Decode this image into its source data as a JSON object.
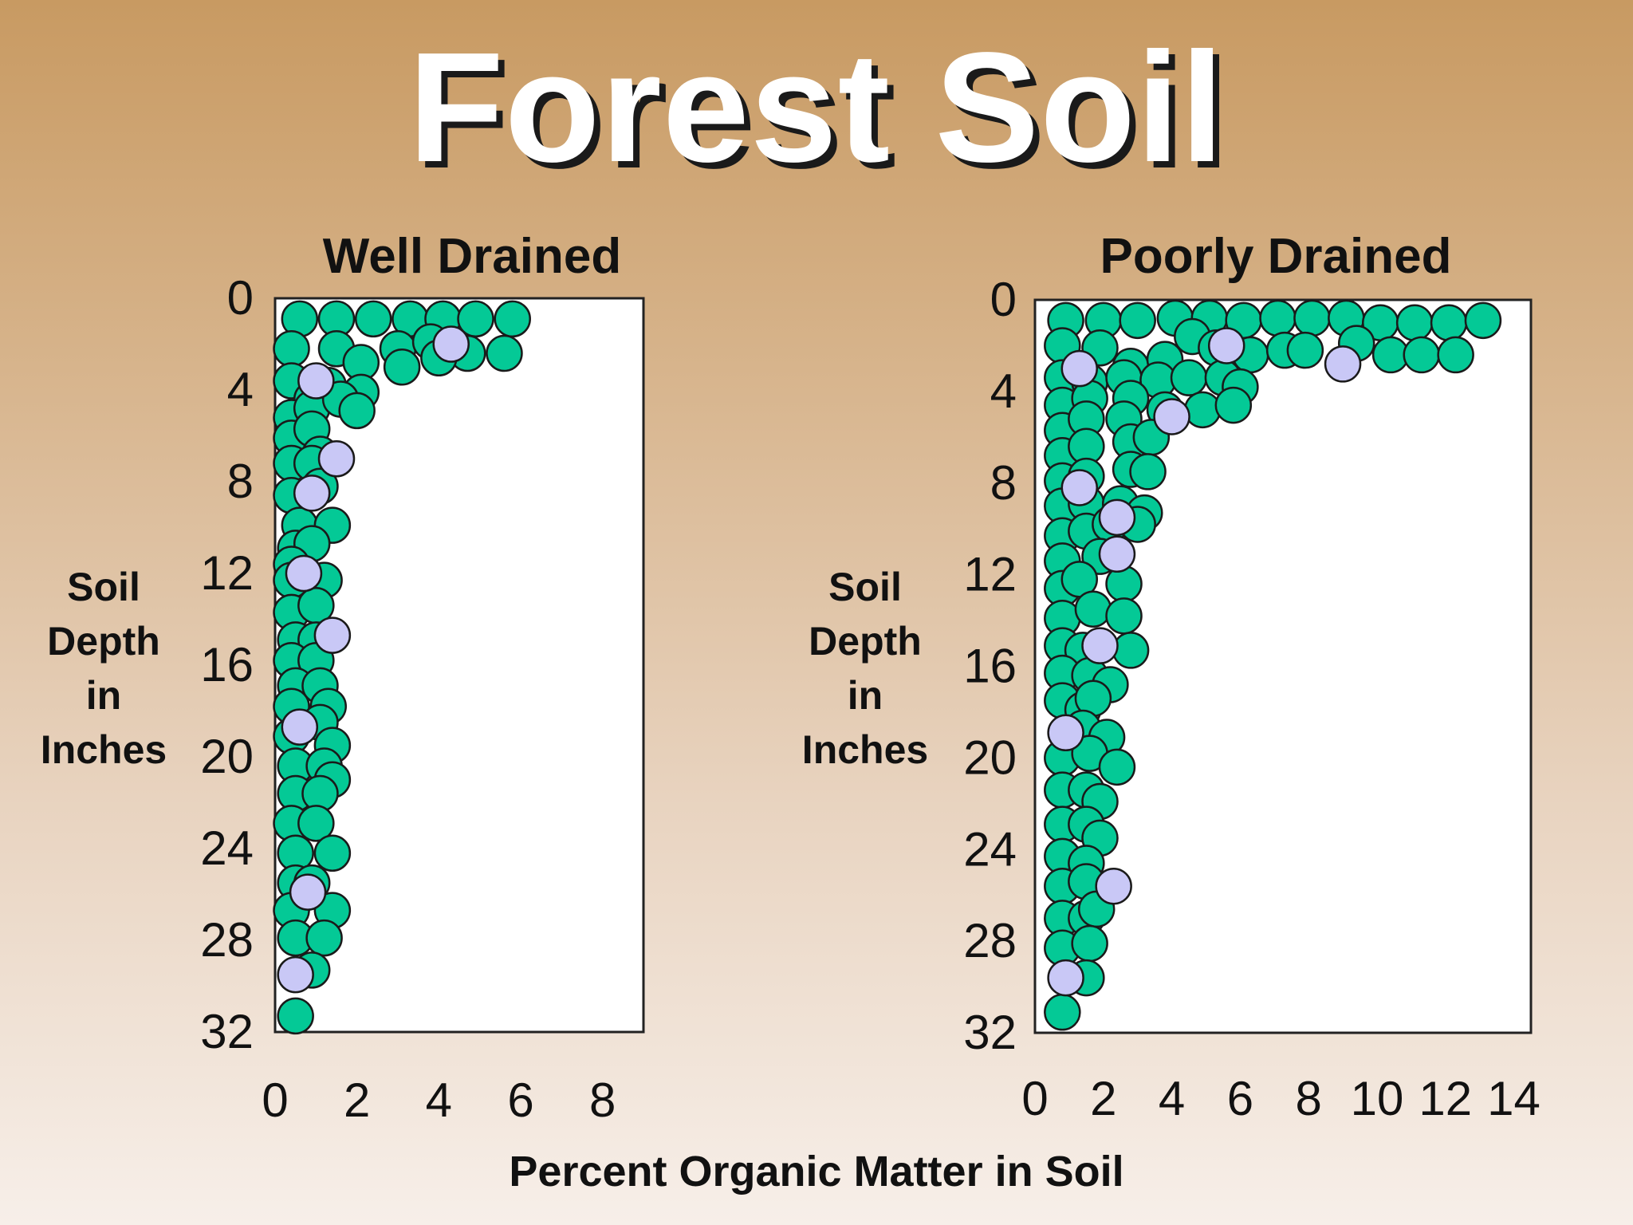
{
  "title": "Forest Soil",
  "x_axis_label": "Percent Organic Matter in Soil",
  "colors": {
    "organic": "#04c996",
    "mineral": "#c9c8f6",
    "outline": "#1a1a1a"
  },
  "chart_data": [
    {
      "type": "scatter",
      "title": "Well Drained",
      "ylabel": "Soil Depth in Inches",
      "ylabel_lines": [
        "Soil",
        "Depth",
        "in",
        "Inches"
      ],
      "xlim": [
        0,
        9
      ],
      "ylim": [
        0,
        32
      ],
      "xticks": [
        "0",
        "2",
        "4",
        "6",
        "8"
      ],
      "yticks": [
        "0",
        "4",
        "8",
        "12",
        "16",
        "20",
        "24",
        "28",
        "32"
      ],
      "y_inverted": true,
      "grid": false,
      "series": [
        {
          "color": "#04c996",
          "points": [
            [
              0.6,
              0.9
            ],
            [
              1.5,
              0.9
            ],
            [
              2.4,
              0.9
            ],
            [
              3.3,
              0.9
            ],
            [
              4.1,
              0.9
            ],
            [
              4.9,
              0.9
            ],
            [
              5.8,
              0.9
            ],
            [
              0.4,
              2.2
            ],
            [
              1.5,
              2.2
            ],
            [
              3.0,
              2.2
            ],
            [
              3.8,
              1.9
            ],
            [
              4.7,
              2.4
            ],
            [
              5.6,
              2.4
            ],
            [
              2.1,
              2.8
            ],
            [
              3.1,
              3.0
            ],
            [
              4.0,
              2.6
            ],
            [
              0.4,
              3.6
            ],
            [
              0.9,
              4.4
            ],
            [
              1.3,
              3.8
            ],
            [
              2.1,
              4.1
            ],
            [
              0.4,
              5.2
            ],
            [
              0.9,
              4.8
            ],
            [
              1.6,
              4.4
            ],
            [
              2.0,
              4.9
            ],
            [
              0.4,
              6.1
            ],
            [
              0.9,
              5.7
            ],
            [
              1.1,
              6.8
            ],
            [
              0.4,
              7.2
            ],
            [
              0.9,
              7.2
            ],
            [
              0.4,
              8.6
            ],
            [
              1.1,
              8.2
            ],
            [
              0.6,
              9.9
            ],
            [
              1.4,
              9.9
            ],
            [
              0.5,
              10.9
            ],
            [
              0.9,
              10.7
            ],
            [
              0.4,
              11.6
            ],
            [
              0.4,
              12.3
            ],
            [
              1.2,
              12.3
            ],
            [
              0.4,
              13.7
            ],
            [
              1.0,
              13.4
            ],
            [
              0.5,
              14.9
            ],
            [
              1.0,
              14.9
            ],
            [
              0.4,
              15.8
            ],
            [
              1.0,
              15.8
            ],
            [
              0.5,
              16.9
            ],
            [
              1.1,
              16.9
            ],
            [
              0.4,
              17.8
            ],
            [
              1.3,
              17.8
            ],
            [
              1.1,
              18.5
            ],
            [
              0.4,
              19.1
            ],
            [
              1.4,
              19.5
            ],
            [
              0.5,
              20.4
            ],
            [
              1.2,
              20.4
            ],
            [
              1.4,
              21.0
            ],
            [
              0.5,
              21.6
            ],
            [
              1.1,
              21.6
            ],
            [
              0.4,
              22.9
            ],
            [
              1.0,
              22.9
            ],
            [
              0.5,
              24.2
            ],
            [
              1.4,
              24.2
            ],
            [
              0.5,
              25.5
            ],
            [
              0.9,
              25.5
            ],
            [
              0.4,
              26.7
            ],
            [
              1.4,
              26.7
            ],
            [
              0.5,
              27.9
            ],
            [
              1.2,
              27.9
            ],
            [
              0.9,
              29.3
            ],
            [
              0.5,
              31.3
            ]
          ]
        },
        {
          "color": "#c9c8f6",
          "points": [
            [
              4.3,
              2.0
            ],
            [
              1.0,
              3.6
            ],
            [
              1.5,
              7.0
            ],
            [
              0.9,
              8.5
            ],
            [
              0.7,
              12.0
            ],
            [
              1.4,
              14.7
            ],
            [
              0.6,
              18.7
            ],
            [
              0.8,
              25.9
            ],
            [
              0.5,
              29.5
            ]
          ]
        }
      ]
    },
    {
      "type": "scatter",
      "title": "Poorly Drained",
      "ylabel": "Soil Depth in Inches",
      "ylabel_lines": [
        "Soil",
        "Depth",
        "in",
        "Inches"
      ],
      "xlim": [
        0,
        14.5
      ],
      "ylim": [
        0,
        32
      ],
      "xticks": [
        "0",
        "2",
        "4",
        "6",
        "8",
        "10",
        "12",
        "14"
      ],
      "yticks": [
        "0",
        "4",
        "8",
        "12",
        "16",
        "20",
        "24",
        "28",
        "32"
      ],
      "y_inverted": true,
      "grid": false,
      "series": [
        {
          "color": "#04c996",
          "points": [
            [
              0.9,
              0.9
            ],
            [
              2.0,
              0.9
            ],
            [
              3.0,
              0.9
            ],
            [
              4.1,
              0.8
            ],
            [
              5.1,
              0.8
            ],
            [
              6.1,
              0.9
            ],
            [
              7.1,
              0.8
            ],
            [
              8.1,
              0.8
            ],
            [
              9.1,
              0.8
            ],
            [
              10.1,
              1.0
            ],
            [
              11.1,
              1.0
            ],
            [
              12.1,
              1.0
            ],
            [
              13.1,
              0.9
            ],
            [
              0.8,
              2.0
            ],
            [
              1.9,
              2.1
            ],
            [
              2.8,
              2.9
            ],
            [
              3.8,
              2.6
            ],
            [
              4.6,
              1.6
            ],
            [
              5.3,
              2.1
            ],
            [
              6.3,
              2.4
            ],
            [
              7.3,
              2.2
            ],
            [
              7.9,
              2.2
            ],
            [
              9.4,
              1.9
            ],
            [
              10.4,
              2.4
            ],
            [
              11.3,
              2.4
            ],
            [
              12.3,
              2.4
            ],
            [
              0.8,
              3.4
            ],
            [
              1.6,
              3.6
            ],
            [
              2.6,
              3.4
            ],
            [
              3.6,
              3.5
            ],
            [
              4.5,
              3.4
            ],
            [
              5.5,
              3.4
            ],
            [
              6.0,
              3.8
            ],
            [
              0.8,
              4.6
            ],
            [
              1.6,
              4.3
            ],
            [
              2.8,
              4.3
            ],
            [
              3.8,
              4.8
            ],
            [
              4.9,
              4.8
            ],
            [
              5.8,
              4.6
            ],
            [
              0.8,
              5.7
            ],
            [
              1.5,
              5.2
            ],
            [
              2.6,
              5.2
            ],
            [
              0.8,
              6.8
            ],
            [
              1.5,
              6.4
            ],
            [
              2.8,
              6.2
            ],
            [
              3.4,
              6.0
            ],
            [
              0.8,
              7.9
            ],
            [
              1.5,
              7.7
            ],
            [
              2.8,
              7.4
            ],
            [
              3.3,
              7.5
            ],
            [
              0.8,
              9.0
            ],
            [
              1.5,
              8.9
            ],
            [
              2.5,
              8.9
            ],
            [
              3.2,
              9.3
            ],
            [
              0.8,
              10.3
            ],
            [
              1.5,
              10.1
            ],
            [
              2.2,
              9.8
            ],
            [
              3.0,
              9.8
            ],
            [
              0.8,
              11.4
            ],
            [
              1.9,
              11.2
            ],
            [
              0.8,
              12.6
            ],
            [
              1.3,
              12.2
            ],
            [
              2.6,
              12.4
            ],
            [
              0.8,
              13.9
            ],
            [
              1.7,
              13.5
            ],
            [
              2.6,
              13.8
            ],
            [
              0.8,
              15.1
            ],
            [
              1.4,
              15.3
            ],
            [
              2.8,
              15.3
            ],
            [
              0.8,
              16.3
            ],
            [
              1.6,
              16.4
            ],
            [
              2.2,
              16.8
            ],
            [
              0.8,
              17.5
            ],
            [
              1.4,
              17.9
            ],
            [
              1.7,
              17.4
            ],
            [
              1.4,
              18.7
            ],
            [
              2.1,
              19.1
            ],
            [
              0.8,
              20.0
            ],
            [
              1.6,
              19.8
            ],
            [
              2.4,
              20.4
            ],
            [
              0.8,
              21.4
            ],
            [
              1.5,
              21.4
            ],
            [
              1.9,
              21.9
            ],
            [
              0.8,
              22.9
            ],
            [
              1.5,
              22.9
            ],
            [
              1.9,
              23.5
            ],
            [
              0.8,
              24.3
            ],
            [
              1.5,
              24.6
            ],
            [
              0.8,
              25.6
            ],
            [
              1.5,
              25.4
            ],
            [
              0.8,
              27.0
            ],
            [
              1.5,
              27.0
            ],
            [
              1.8,
              26.6
            ],
            [
              0.8,
              28.3
            ],
            [
              1.6,
              28.1
            ],
            [
              1.5,
              29.6
            ],
            [
              0.8,
              31.1
            ]
          ]
        },
        {
          "color": "#c9c8f6",
          "points": [
            [
              5.6,
              2.0
            ],
            [
              1.3,
              3.0
            ],
            [
              9.0,
              2.8
            ],
            [
              4.0,
              5.1
            ],
            [
              1.3,
              8.2
            ],
            [
              2.4,
              9.5
            ],
            [
              2.4,
              11.1
            ],
            [
              1.9,
              15.1
            ],
            [
              0.9,
              18.9
            ],
            [
              2.3,
              25.6
            ],
            [
              0.9,
              29.6
            ]
          ]
        }
      ]
    }
  ]
}
